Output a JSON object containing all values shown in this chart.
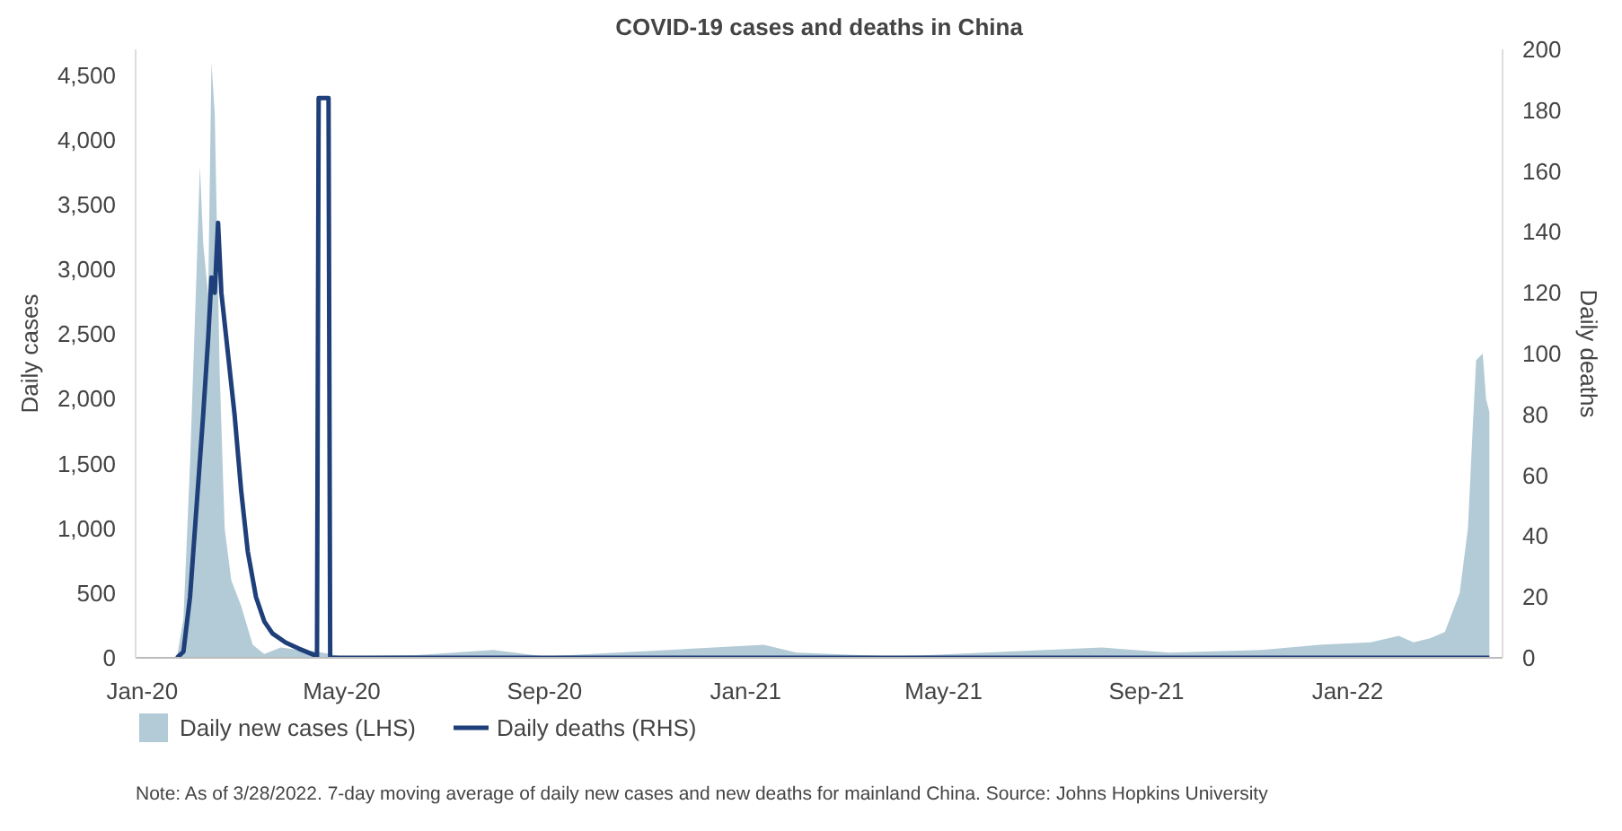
{
  "chart_data": {
    "type": "line",
    "title": "COVID-19 cases and deaths in China",
    "ylabel": "Daily cases",
    "y2label": "Daily deaths",
    "xlim": [
      "2019-12-28",
      "2022-04-05"
    ],
    "xticks": [
      {
        "value": "2020-01-01",
        "label": "Jan-20"
      },
      {
        "value": "2020-05-01",
        "label": "May-20"
      },
      {
        "value": "2020-09-01",
        "label": "Sep-20"
      },
      {
        "value": "2021-01-01",
        "label": "Jan-21"
      },
      {
        "value": "2021-05-01",
        "label": "May-21"
      },
      {
        "value": "2021-09-01",
        "label": "Sep-21"
      },
      {
        "value": "2022-01-01",
        "label": "Jan-22"
      }
    ],
    "ylim": [
      0,
      4700
    ],
    "yticks": [
      0,
      {
        "value": 500,
        "label": "500"
      },
      {
        "value": 1000,
        "label": "1,000"
      },
      {
        "value": 1500,
        "label": "1,500"
      },
      {
        "value": 2000,
        "label": "2,000"
      },
      {
        "value": 2500,
        "label": "2,500"
      },
      {
        "value": 3000,
        "label": "3,000"
      },
      {
        "value": 3500,
        "label": "3,500"
      },
      {
        "value": 4000,
        "label": "4,000"
      },
      {
        "value": 4500,
        "label": "4,500"
      }
    ],
    "y2lim": [
      0,
      200
    ],
    "y2ticks": [
      0,
      20,
      40,
      60,
      80,
      100,
      120,
      140,
      160,
      180,
      200
    ],
    "grid": false,
    "legend": "bottom",
    "series": [
      {
        "name": "Daily new cases (LHS)",
        "type": "area",
        "color": "#b3cbd6",
        "x": [
          "2020-01-22",
          "2020-01-26",
          "2020-01-30",
          "2020-02-03",
          "2020-02-05",
          "2020-02-07",
          "2020-02-10",
          "2020-02-12",
          "2020-02-14",
          "2020-02-17",
          "2020-02-20",
          "2020-02-24",
          "2020-03-01",
          "2020-03-08",
          "2020-03-15",
          "2020-03-25",
          "2020-04-05",
          "2020-04-15",
          "2020-05-01",
          "2020-06-15",
          "2020-08-01",
          "2020-09-01",
          "2021-01-12",
          "2021-02-01",
          "2021-04-01",
          "2021-08-05",
          "2021-09-15",
          "2021-11-10",
          "2021-12-15",
          "2022-01-15",
          "2022-02-01",
          "2022-02-10",
          "2022-02-20",
          "2022-03-01",
          "2022-03-10",
          "2022-03-15",
          "2022-03-18",
          "2022-03-20",
          "2022-03-24",
          "2022-03-26",
          "2022-03-28"
        ],
        "values": [
          0,
          300,
          1500,
          3000,
          3800,
          3200,
          2800,
          4600,
          4200,
          2200,
          1000,
          600,
          400,
          100,
          30,
          80,
          60,
          50,
          10,
          20,
          60,
          10,
          100,
          40,
          10,
          80,
          40,
          60,
          100,
          120,
          170,
          120,
          150,
          200,
          500,
          1000,
          1800,
          2300,
          2350,
          2000,
          1900
        ]
      },
      {
        "name": "Daily deaths (RHS)",
        "axis": "y2",
        "color": "#1f3f7a",
        "x": [
          "2020-01-22",
          "2020-01-26",
          "2020-01-30",
          "2020-02-03",
          "2020-02-07",
          "2020-02-10",
          "2020-02-12",
          "2020-02-14",
          "2020-02-16",
          "2020-02-18",
          "2020-02-22",
          "2020-02-26",
          "2020-03-01",
          "2020-03-05",
          "2020-03-10",
          "2020-03-15",
          "2020-03-20",
          "2020-03-28",
          "2020-04-05",
          "2020-04-14",
          "2020-04-16",
          "2020-04-17",
          "2020-04-23",
          "2020-04-24",
          "2022-03-28"
        ],
        "values": [
          0,
          2,
          20,
          50,
          80,
          105,
          125,
          120,
          143,
          120,
          100,
          80,
          55,
          35,
          20,
          12,
          8,
          5,
          3,
          1,
          0,
          184,
          184,
          0,
          0
        ]
      }
    ],
    "annotations": [
      "Note: As of 3/28/2022. 7-day moving average of daily new cases and new deaths for mainland China. Source: Johns Hopkins University"
    ]
  }
}
